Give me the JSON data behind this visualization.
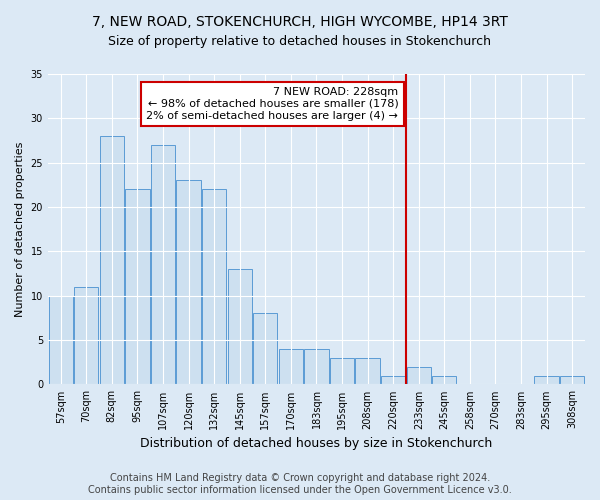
{
  "title": "7, NEW ROAD, STOKENCHURCH, HIGH WYCOMBE, HP14 3RT",
  "subtitle": "Size of property relative to detached houses in Stokenchurch",
  "xlabel": "Distribution of detached houses by size in Stokenchurch",
  "ylabel": "Number of detached properties",
  "categories": [
    "57sqm",
    "70sqm",
    "82sqm",
    "95sqm",
    "107sqm",
    "120sqm",
    "132sqm",
    "145sqm",
    "157sqm",
    "170sqm",
    "183sqm",
    "195sqm",
    "208sqm",
    "220sqm",
    "233sqm",
    "245sqm",
    "258sqm",
    "270sqm",
    "283sqm",
    "295sqm",
    "308sqm"
  ],
  "values": [
    10,
    11,
    28,
    22,
    27,
    23,
    22,
    13,
    8,
    4,
    4,
    3,
    3,
    1,
    2,
    1,
    0,
    0,
    0,
    1,
    1
  ],
  "bar_color": "#cde0f0",
  "bar_edge_color": "#5b9bd5",
  "vline_x_index": 13.5,
  "vline_color": "#cc0000",
  "annotation_text": "7 NEW ROAD: 228sqm\n← 98% of detached houses are smaller (178)\n2% of semi-detached houses are larger (4) →",
  "annotation_box_facecolor": "#ffffff",
  "annotation_box_edgecolor": "#cc0000",
  "ylim": [
    0,
    35
  ],
  "yticks": [
    0,
    5,
    10,
    15,
    20,
    25,
    30,
    35
  ],
  "background_color": "#dce9f5",
  "grid_color": "#ffffff",
  "footer": "Contains HM Land Registry data © Crown copyright and database right 2024.\nContains public sector information licensed under the Open Government Licence v3.0.",
  "title_fontsize": 10,
  "subtitle_fontsize": 9,
  "xlabel_fontsize": 9,
  "ylabel_fontsize": 8,
  "tick_fontsize": 7,
  "annotation_fontsize": 8,
  "footer_fontsize": 7
}
